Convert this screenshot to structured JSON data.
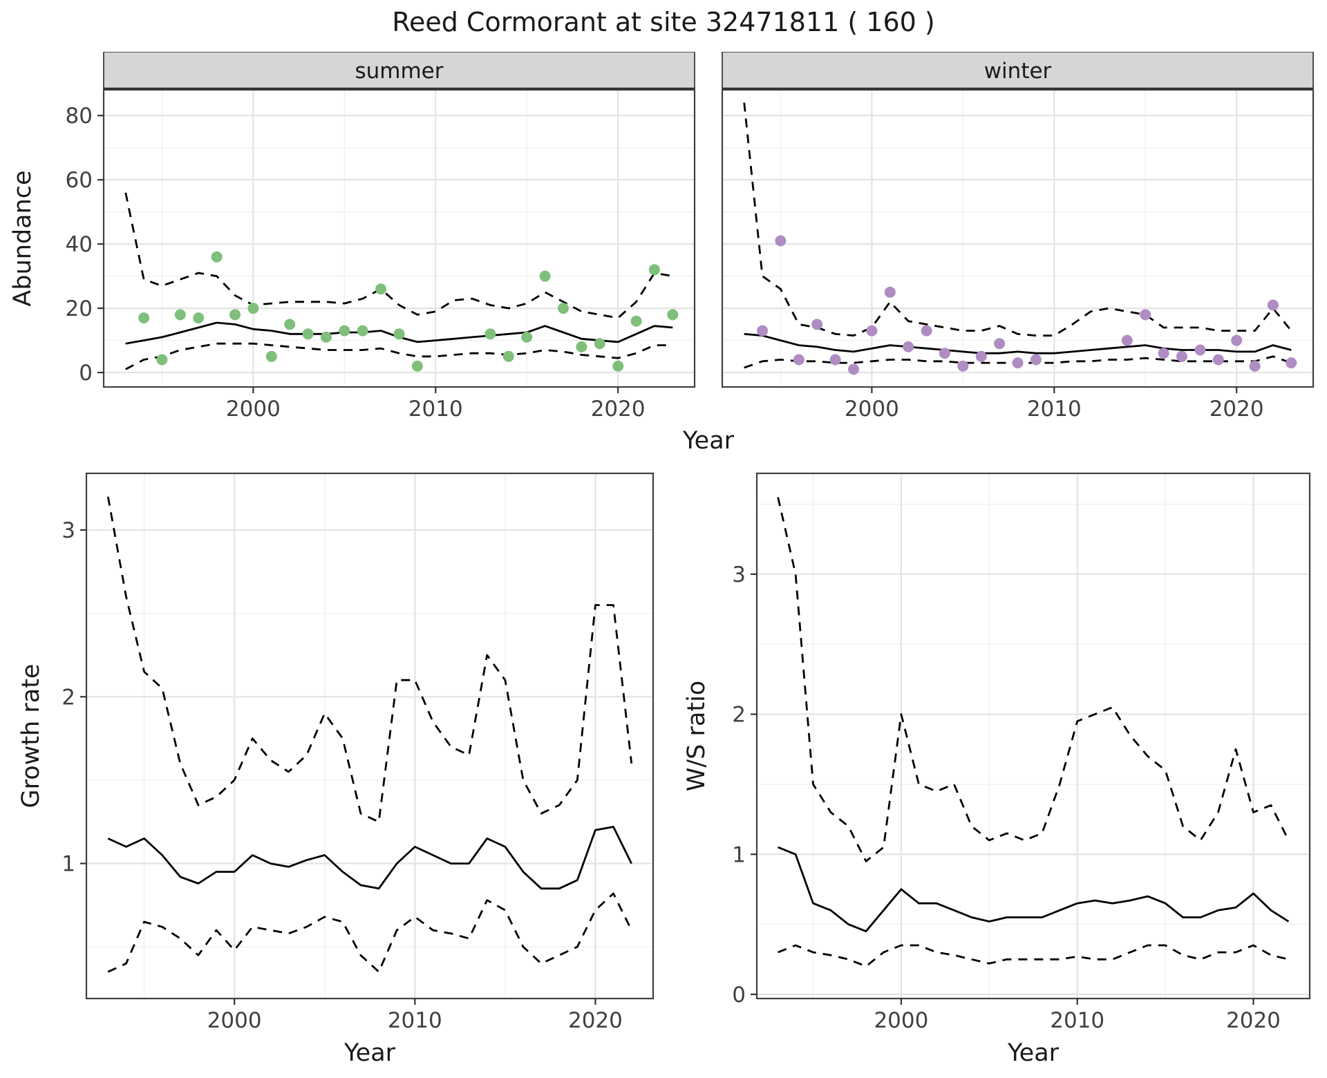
{
  "title": "Reed Cormorant at site 32471811 ( 160 )",
  "top_row": {
    "ylabel": "Abundance",
    "xlabel": "Year"
  },
  "bottom_row": {
    "left_ylabel": "Growth rate",
    "right_ylabel": "W/S ratio",
    "xlabel": "Year"
  },
  "colors": {
    "summer_points": "#7fbf7b",
    "winter_points": "#af8dc3",
    "line": "#000000",
    "grid_major": "#e3e3e3",
    "grid_minor": "#f0f0f0",
    "strip_bg": "#d6d6d6",
    "panel_border": "#404040",
    "axis_text": "#404040"
  },
  "chart_data": [
    {
      "id": "abundance_summer",
      "type": "line",
      "facet_label": "summer",
      "xlabel": "Year",
      "ylabel": "Abundance",
      "xlim": [
        1991.8,
        2024.2
      ],
      "ylim": [
        -4.5,
        88
      ],
      "xticks": [
        2000,
        2010,
        2020
      ],
      "yticks": [
        0,
        20,
        40,
        60,
        80
      ],
      "x": [
        1993,
        1994,
        1995,
        1996,
        1997,
        1998,
        1999,
        2000,
        2001,
        2002,
        2003,
        2004,
        2005,
        2006,
        2007,
        2008,
        2009,
        2010,
        2011,
        2012,
        2013,
        2014,
        2015,
        2016,
        2017,
        2018,
        2019,
        2020,
        2021,
        2022,
        2023
      ],
      "series": [
        {
          "name": "fit",
          "style": "solid",
          "values": [
            9,
            10,
            11,
            12.5,
            14,
            15.5,
            15,
            13.5,
            13,
            12,
            12,
            12,
            12.5,
            12.5,
            13,
            11,
            9.5,
            10,
            10.5,
            11,
            11.5,
            12,
            12.5,
            14.5,
            12.5,
            10.5,
            10,
            9.5,
            12,
            14.5,
            14
          ]
        },
        {
          "name": "upper-ci",
          "style": "dashed",
          "values": [
            56,
            29,
            27,
            29,
            31,
            30,
            24,
            21,
            21.5,
            22,
            22,
            22,
            21.5,
            23,
            26,
            21,
            18,
            19,
            22.5,
            23,
            21,
            20,
            21.5,
            25,
            22,
            19,
            18,
            17,
            22,
            31,
            30
          ]
        },
        {
          "name": "lower-ci",
          "style": "dashed",
          "values": [
            1,
            4,
            5,
            7,
            8,
            9,
            9,
            9,
            8.5,
            8,
            7.5,
            7,
            7,
            7,
            7.5,
            6,
            5,
            5,
            5.5,
            6,
            6,
            5.5,
            6,
            7,
            6.5,
            5.5,
            5,
            4.5,
            6,
            8.5,
            8.5
          ]
        }
      ],
      "points": {
        "x": [
          1994,
          1995,
          1996,
          1997,
          1998,
          1999,
          2000,
          2001,
          2002,
          2003,
          2004,
          2005,
          2006,
          2007,
          2008,
          2009,
          2013,
          2014,
          2015,
          2016,
          2017,
          2018,
          2019,
          2020,
          2021,
          2022,
          2023
        ],
        "y": [
          17,
          4,
          18,
          17,
          36,
          18,
          20,
          5,
          15,
          12,
          11,
          13,
          13,
          26,
          12,
          2,
          12,
          5,
          11,
          30,
          20,
          8,
          9,
          2,
          16,
          32,
          18
        ],
        "color": "#7fbf7b"
      }
    },
    {
      "id": "abundance_winter",
      "type": "line",
      "facet_label": "winter",
      "xlabel": "Year",
      "ylabel": "Abundance",
      "xlim": [
        1991.8,
        2024.2
      ],
      "ylim": [
        -4.5,
        88
      ],
      "xticks": [
        2000,
        2010,
        2020
      ],
      "yticks": [
        0,
        20,
        40,
        60,
        80
      ],
      "x": [
        1993,
        1994,
        1995,
        1996,
        1997,
        1998,
        1999,
        2000,
        2001,
        2002,
        2003,
        2004,
        2005,
        2006,
        2007,
        2008,
        2009,
        2010,
        2011,
        2012,
        2013,
        2014,
        2015,
        2016,
        2017,
        2018,
        2019,
        2020,
        2021,
        2022,
        2023
      ],
      "series": [
        {
          "name": "fit",
          "style": "solid",
          "values": [
            12,
            11.5,
            10,
            8.5,
            8,
            7,
            6.5,
            7.5,
            8.5,
            8,
            7.5,
            7,
            6.5,
            6,
            6,
            6.5,
            6,
            6,
            6.5,
            7,
            7.5,
            8,
            8.5,
            7.5,
            7,
            7,
            7,
            6.5,
            6.5,
            8.5,
            7
          ]
        },
        {
          "name": "upper-ci",
          "style": "dashed",
          "values": [
            84,
            30,
            26,
            15,
            14,
            12,
            11.5,
            14,
            22,
            16,
            15,
            14,
            13,
            13,
            14.5,
            12,
            11.5,
            11.5,
            15,
            19,
            20,
            19,
            18,
            14,
            14,
            14,
            13,
            13,
            13,
            20,
            13
          ]
        },
        {
          "name": "lower-ci",
          "style": "dashed",
          "values": [
            1.5,
            3.5,
            4,
            3.5,
            3.5,
            3,
            3,
            3.5,
            4,
            4,
            3.5,
            3.5,
            3,
            3,
            3,
            3,
            3,
            3,
            3.5,
            3.5,
            4,
            4,
            4.5,
            4,
            3.5,
            3.5,
            3.5,
            3.5,
            3.5,
            5,
            3
          ]
        }
      ],
      "points": {
        "x": [
          1994,
          1995,
          1996,
          1997,
          1998,
          1999,
          2000,
          2001,
          2002,
          2003,
          2004,
          2005,
          2006,
          2007,
          2008,
          2009,
          2014,
          2015,
          2016,
          2017,
          2018,
          2019,
          2020,
          2021,
          2022,
          2023
        ],
        "y": [
          13,
          41,
          4,
          15,
          4,
          1,
          13,
          25,
          8,
          13,
          6,
          2,
          5,
          9,
          3,
          4,
          10,
          18,
          6,
          5,
          7,
          4,
          10,
          2,
          21,
          3
        ],
        "color": "#af8dc3"
      }
    },
    {
      "id": "growth_rate",
      "type": "line",
      "facet_label": null,
      "xlabel": "Year",
      "ylabel": "Growth rate",
      "xlim": [
        1991.8,
        2023.2
      ],
      "ylim": [
        0.19,
        3.34
      ],
      "xticks": [
        2000,
        2010,
        2020
      ],
      "yticks": [
        1,
        2,
        3
      ],
      "x": [
        1993,
        1994,
        1995,
        1996,
        1997,
        1998,
        1999,
        2000,
        2001,
        2002,
        2003,
        2004,
        2005,
        2006,
        2007,
        2008,
        2009,
        2010,
        2011,
        2012,
        2013,
        2014,
        2015,
        2016,
        2017,
        2018,
        2019,
        2020,
        2021,
        2022
      ],
      "series": [
        {
          "name": "fit",
          "style": "solid",
          "values": [
            1.15,
            1.1,
            1.15,
            1.05,
            0.92,
            0.88,
            0.95,
            0.95,
            1.05,
            1.0,
            0.98,
            1.02,
            1.05,
            0.95,
            0.87,
            0.85,
            1.0,
            1.1,
            1.05,
            1.0,
            1.0,
            1.15,
            1.1,
            0.95,
            0.85,
            0.85,
            0.9,
            1.2,
            1.22,
            1.0
          ]
        },
        {
          "name": "upper-ci",
          "style": "dashed",
          "values": [
            3.2,
            2.6,
            2.15,
            2.05,
            1.6,
            1.35,
            1.4,
            1.5,
            1.75,
            1.62,
            1.55,
            1.65,
            1.9,
            1.75,
            1.3,
            1.25,
            2.1,
            2.1,
            1.85,
            1.7,
            1.65,
            2.25,
            2.1,
            1.5,
            1.3,
            1.35,
            1.5,
            2.55,
            2.55,
            1.6
          ]
        },
        {
          "name": "lower-ci",
          "style": "dashed",
          "values": [
            0.35,
            0.4,
            0.65,
            0.62,
            0.55,
            0.45,
            0.6,
            0.48,
            0.62,
            0.6,
            0.58,
            0.62,
            0.68,
            0.65,
            0.45,
            0.35,
            0.6,
            0.68,
            0.6,
            0.58,
            0.55,
            0.78,
            0.72,
            0.5,
            0.4,
            0.45,
            0.5,
            0.72,
            0.82,
            0.6
          ]
        }
      ],
      "points": null
    },
    {
      "id": "ws_ratio",
      "type": "line",
      "facet_label": null,
      "xlabel": "Year",
      "ylabel": "W/S ratio",
      "xlim": [
        1991.8,
        2023.2
      ],
      "ylim": [
        -0.03,
        3.72
      ],
      "xticks": [
        2000,
        2010,
        2020
      ],
      "yticks": [
        0,
        1,
        2,
        3
      ],
      "x": [
        1993,
        1994,
        1995,
        1996,
        1997,
        1998,
        1999,
        2000,
        2001,
        2002,
        2003,
        2004,
        2005,
        2006,
        2007,
        2008,
        2009,
        2010,
        2011,
        2012,
        2013,
        2014,
        2015,
        2016,
        2017,
        2018,
        2019,
        2020,
        2021,
        2022
      ],
      "series": [
        {
          "name": "fit",
          "style": "solid",
          "values": [
            1.05,
            1.0,
            0.65,
            0.6,
            0.5,
            0.45,
            0.6,
            0.75,
            0.65,
            0.65,
            0.6,
            0.55,
            0.52,
            0.55,
            0.55,
            0.55,
            0.6,
            0.65,
            0.67,
            0.65,
            0.67,
            0.7,
            0.65,
            0.55,
            0.55,
            0.6,
            0.62,
            0.72,
            0.6,
            0.52
          ]
        },
        {
          "name": "upper-ci",
          "style": "dashed",
          "values": [
            3.55,
            3.0,
            1.5,
            1.3,
            1.2,
            0.95,
            1.05,
            2.0,
            1.5,
            1.45,
            1.5,
            1.2,
            1.1,
            1.15,
            1.1,
            1.15,
            1.5,
            1.95,
            2.0,
            2.05,
            1.85,
            1.7,
            1.6,
            1.2,
            1.1,
            1.3,
            1.75,
            1.3,
            1.35,
            1.1
          ]
        },
        {
          "name": "lower-ci",
          "style": "dashed",
          "values": [
            0.3,
            0.35,
            0.3,
            0.28,
            0.25,
            0.2,
            0.3,
            0.35,
            0.35,
            0.3,
            0.28,
            0.25,
            0.22,
            0.25,
            0.25,
            0.25,
            0.25,
            0.27,
            0.25,
            0.25,
            0.3,
            0.35,
            0.35,
            0.28,
            0.25,
            0.3,
            0.3,
            0.35,
            0.28,
            0.25
          ]
        }
      ],
      "points": null
    }
  ]
}
